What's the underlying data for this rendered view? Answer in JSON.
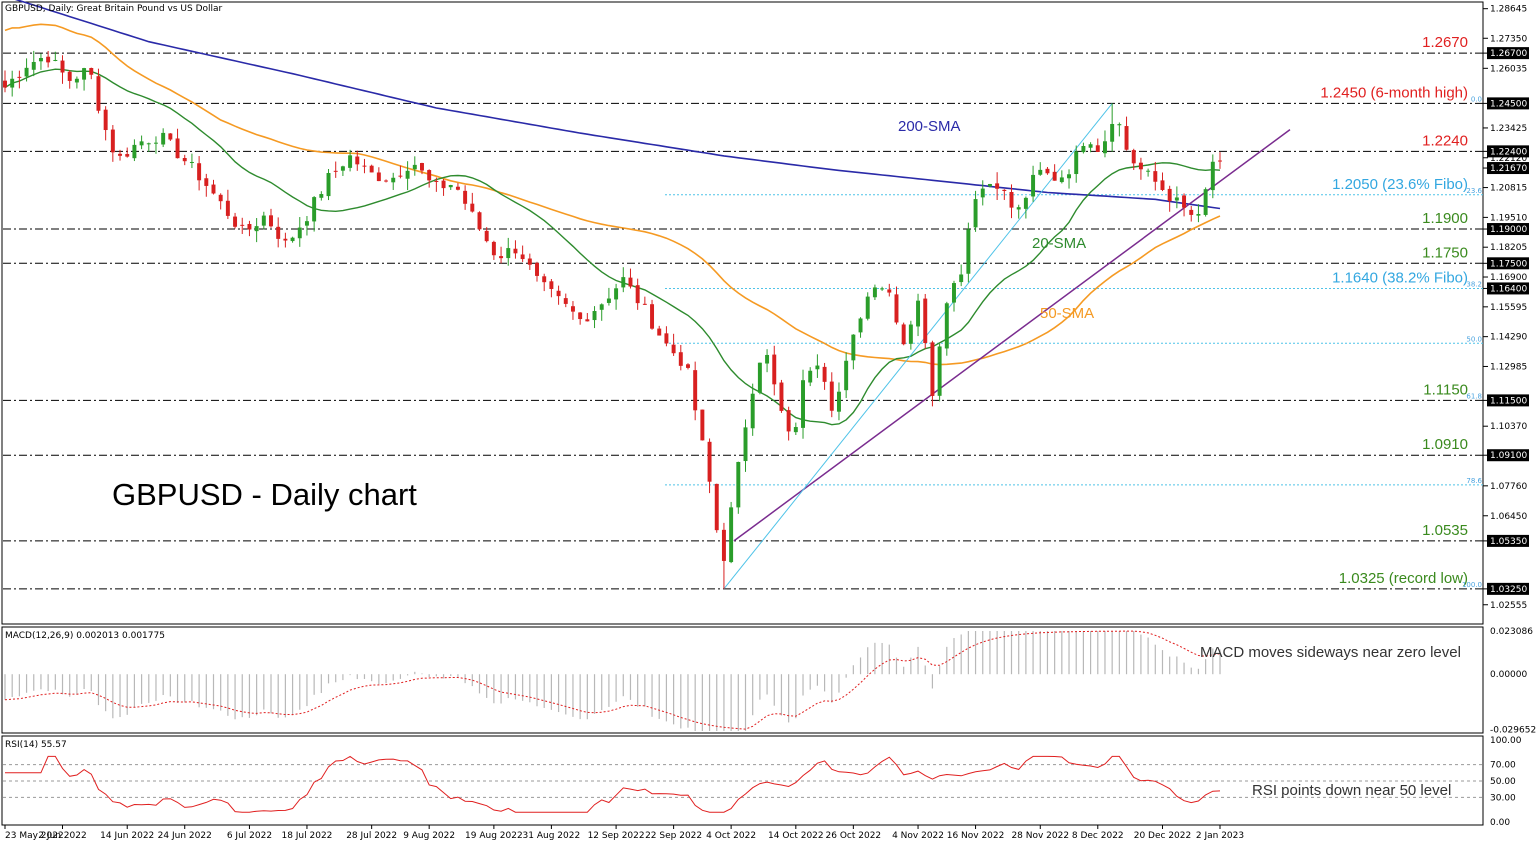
{
  "header": {
    "title": "GBPUSD, Daily:  Great Britain Pound vs US Dollar",
    "big_title": "GBPUSD - Daily chart"
  },
  "colors": {
    "sma20": "#2e8b2e",
    "sma50": "#f59a23",
    "sma200": "#2a2aa8",
    "trend": "#7a2c8f",
    "fibo": "#4fc3e8",
    "level_red": "#e02020",
    "fib_label": "#33a7e0",
    "level_green": "#3a8a1e",
    "candle_up": "#2a9d2a",
    "candle_down": "#d82020",
    "macd_signal": "#e02020",
    "rsi": "#e02020"
  },
  "chart_data": [
    {
      "type": "candlestick",
      "panel": "price",
      "x_ticks": [
        "23 May 2022",
        "2 Jun 2022",
        "14 Jun 2022",
        "24 Jun 2022",
        "6 Jul 2022",
        "18 Jul 2022",
        "28 Jul 2022",
        "9 Aug 2022",
        "19 Aug 2022",
        "31 Aug 2022",
        "12 Sep 2022",
        "22 Sep 2022",
        "4 Oct 2022",
        "14 Oct 2022",
        "26 Oct 2022",
        "4 Nov 2022",
        "16 Nov 2022",
        "28 Nov 2022",
        "8 Dec 2022",
        "20 Dec 2022",
        "2 Jan 2023"
      ],
      "y_ticks": [
        "1.28645",
        "1.27350",
        "1.26700",
        "1.26035",
        "1.24500",
        "1.23425",
        "1.22400",
        "1.22120",
        "1.21670",
        "1.20815",
        "1.19510",
        "1.19000",
        "1.18205",
        "1.17500",
        "1.16900",
        "1.16400",
        "1.15595",
        "1.14290",
        "1.12985",
        "1.11500",
        "1.10370",
        "1.09100",
        "1.07760",
        "1.06450",
        "1.05350",
        "1.03250",
        "1.02555"
      ],
      "ylim": [
        1.018,
        1.2885
      ],
      "current_price": "1.21670",
      "levels": [
        {
          "value": 1.267,
          "label": "1.2670",
          "color": "red",
          "tag": "1.26700"
        },
        {
          "value": 1.245,
          "label": "1.2450 (6-month high)",
          "color": "red",
          "tag": "1.24500",
          "fib": "0.0"
        },
        {
          "value": 1.224,
          "label": "1.2240",
          "color": "red",
          "tag": "1.22400"
        },
        {
          "value": 1.205,
          "label": "1.2050 (23.6% Fibo)",
          "color": "fib",
          "tag": "",
          "fib": "23.6"
        },
        {
          "value": 1.19,
          "label": "1.1900",
          "color": "green",
          "tag": "1.19000"
        },
        {
          "value": 1.175,
          "label": "1.1750",
          "color": "green",
          "tag": "1.17500"
        },
        {
          "value": 1.164,
          "label": "1.1640 (38.2% Fibo)",
          "color": "fib",
          "tag": "1.16400",
          "fib": "38.2"
        },
        {
          "value": 1.14,
          "label": "",
          "color": "fib",
          "tag": "",
          "fib": "50.0"
        },
        {
          "value": 1.115,
          "label": "1.1150",
          "color": "green",
          "tag": "1.11500",
          "fib": "61.8"
        },
        {
          "value": 1.091,
          "label": "1.0910",
          "color": "green",
          "tag": "1.09100"
        },
        {
          "value": 1.078,
          "label": "",
          "color": "fib",
          "tag": "",
          "fib": "78.6"
        },
        {
          "value": 1.0535,
          "label": "1.0535",
          "color": "green",
          "tag": "1.05350"
        },
        {
          "value": 1.0325,
          "label": "1.0325 (record low)",
          "color": "green",
          "tag": "1.03250",
          "fib": "100.0"
        }
      ],
      "annotations": [
        "200-SMA",
        "20-SMA",
        "50-SMA"
      ]
    },
    {
      "type": "histogram",
      "panel": "macd",
      "title": "MACD(12,26,9) 0.002013 0.001775",
      "y_ticks": [
        "0.023086",
        "0.00000",
        "-0.029652"
      ],
      "ylim": [
        -0.0305,
        0.0232
      ],
      "annotation": "MACD moves sideways near zero level"
    },
    {
      "type": "line",
      "panel": "rsi",
      "title": "RSI(14) 55.57",
      "y_ticks": [
        "100.00",
        "70.00",
        "50.00",
        "30.00",
        "0.00"
      ],
      "ylim": [
        0,
        100
      ],
      "annotation": "RSI points down near 50 level"
    }
  ]
}
